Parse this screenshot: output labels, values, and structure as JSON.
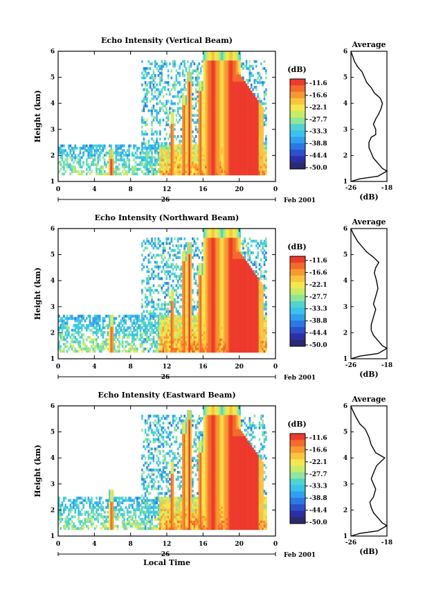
{
  "colorbar": {
    "unit": "(dB)",
    "labels": [
      "-11.6",
      "-16.6",
      "-22.1",
      "-27.7",
      "-33.3",
      "-38.8",
      "-44.4",
      "-50.0"
    ],
    "colors": [
      "#ee3a2c",
      "#f46a2a",
      "#f8992f",
      "#fbc43c",
      "#f4e74e",
      "#c9ec66",
      "#8fe59a",
      "#4fd4cf",
      "#38c3ee",
      "#2f9ff0",
      "#2b77e6",
      "#2b50cc",
      "#2b2fa6",
      "#2a2a6e"
    ]
  },
  "chart_data": [
    {
      "type": "heatmap",
      "title": "Echo Intensity (Vertical Beam)",
      "xlabel": "",
      "ylabel": "Height (km)",
      "xticks": [
        "0",
        "4",
        "8",
        "12",
        "16",
        "20",
        "0"
      ],
      "xlim": [
        0,
        24
      ],
      "ylim": [
        1,
        6
      ],
      "yticks": [
        "1",
        "2",
        "3",
        "4",
        "5",
        "6"
      ],
      "date_label": "26",
      "month_label": "Feb 2001",
      "zlabel": "(dB)",
      "zlim": [
        -50.0,
        -11.6
      ],
      "average_profile": {
        "title": "Average",
        "xlabel": "(dB)",
        "xticks": [
          "-26",
          "-18"
        ],
        "xlim": [
          -26,
          -18
        ],
        "ylim": [
          1,
          6
        ],
        "points": [
          [
            -26,
            1.0
          ],
          [
            -24,
            1.1
          ],
          [
            -20,
            1.2
          ],
          [
            -18,
            1.4
          ],
          [
            -19,
            1.5
          ],
          [
            -20,
            1.7
          ],
          [
            -21,
            1.9
          ],
          [
            -21.5,
            2.1
          ],
          [
            -22,
            2.3
          ],
          [
            -22,
            2.5
          ],
          [
            -21.5,
            2.7
          ],
          [
            -20.5,
            2.8
          ],
          [
            -20.5,
            3.0
          ],
          [
            -21,
            3.2
          ],
          [
            -20.5,
            3.4
          ],
          [
            -19.8,
            3.6
          ],
          [
            -19.3,
            3.8
          ],
          [
            -19,
            4.0
          ],
          [
            -19.5,
            4.2
          ],
          [
            -20.8,
            4.4
          ],
          [
            -21.5,
            4.6
          ],
          [
            -22.5,
            4.8
          ],
          [
            -23,
            5.0
          ],
          [
            -23.5,
            5.2
          ],
          [
            -24.5,
            5.4
          ],
          [
            -25.2,
            5.6
          ],
          [
            -25.6,
            5.8
          ],
          [
            -26,
            6.0
          ]
        ]
      },
      "events": [
        {
          "hour": 5.8,
          "top": 2.2,
          "core": -12
        },
        {
          "hour": 12.5,
          "top": 3.6,
          "core": -13
        },
        {
          "hour": 13.8,
          "top": 4.3,
          "core": -12
        },
        {
          "hour": 14.4,
          "top": 5.2,
          "core": -12
        },
        {
          "hour": 15.6,
          "top": 4.8,
          "core": -12
        },
        {
          "hour": 17.0,
          "top": 6.0,
          "core": -11.6
        },
        {
          "hour": 19.0,
          "top": 6.0,
          "core": -11.6
        }
      ],
      "low_layer": [
        1.2,
        2.4
      ],
      "sparse_hours": [
        0,
        10
      ]
    },
    {
      "type": "heatmap",
      "title": "Echo Intensity (Northward Beam)",
      "xlabel": "",
      "ylabel": "Height (km)",
      "xticks": [
        "0",
        "4",
        "8",
        "12",
        "16",
        "20",
        "0"
      ],
      "xlim": [
        0,
        24
      ],
      "ylim": [
        1,
        6
      ],
      "yticks": [
        "1",
        "2",
        "3",
        "4",
        "5",
        "6"
      ],
      "date_label": "26",
      "month_label": "Feb 2001",
      "zlabel": "(dB)",
      "zlim": [
        -50.0,
        -11.6
      ],
      "average_profile": {
        "title": "Average",
        "xlabel": "(dB)",
        "xticks": [
          "-26",
          "-18"
        ],
        "xlim": [
          -26,
          -18
        ],
        "ylim": [
          1,
          6
        ],
        "points": [
          [
            -26,
            1.0
          ],
          [
            -24,
            1.1
          ],
          [
            -20,
            1.2
          ],
          [
            -18,
            1.4
          ],
          [
            -19,
            1.5
          ],
          [
            -20,
            1.7
          ],
          [
            -21,
            1.9
          ],
          [
            -21.5,
            2.1
          ],
          [
            -21.5,
            2.3
          ],
          [
            -21,
            2.6
          ],
          [
            -20.5,
            2.9
          ],
          [
            -21,
            3.1
          ],
          [
            -20.5,
            3.4
          ],
          [
            -20,
            3.7
          ],
          [
            -20.3,
            4.0
          ],
          [
            -20.8,
            4.3
          ],
          [
            -20.5,
            4.5
          ],
          [
            -19.8,
            4.7
          ],
          [
            -21,
            4.9
          ],
          [
            -22.5,
            5.1
          ],
          [
            -23.5,
            5.3
          ],
          [
            -24.5,
            5.5
          ],
          [
            -25.5,
            5.8
          ],
          [
            -26,
            6.0
          ]
        ]
      },
      "events": [
        {
          "hour": 5.8,
          "top": 2.6,
          "core": -13
        },
        {
          "hour": 12.5,
          "top": 3.6,
          "core": -13
        },
        {
          "hour": 13.8,
          "top": 5.1,
          "core": -12
        },
        {
          "hour": 14.4,
          "top": 5.4,
          "core": -12
        },
        {
          "hour": 15.6,
          "top": 4.6,
          "core": -12
        },
        {
          "hour": 17.0,
          "top": 6.0,
          "core": -11.6
        },
        {
          "hour": 19.0,
          "top": 6.0,
          "core": -11.6
        }
      ],
      "low_layer": [
        1.2,
        2.6
      ],
      "sparse_hours": [
        0,
        10
      ]
    },
    {
      "type": "heatmap",
      "title": "Echo Intensity (Eastward Beam)",
      "xlabel": "Local Time",
      "ylabel": "Height (km)",
      "xticks": [
        "0",
        "4",
        "8",
        "12",
        "16",
        "20",
        "0"
      ],
      "xlim": [
        0,
        24
      ],
      "ylim": [
        1,
        6
      ],
      "yticks": [
        "1",
        "2",
        "3",
        "4",
        "5",
        "6"
      ],
      "date_label": "26",
      "month_label": "Feb 2001",
      "zlabel": "(dB)",
      "zlim": [
        -50.0,
        -11.6
      ],
      "average_profile": {
        "title": "Average",
        "xlabel": "(dB)",
        "xticks": [
          "-26",
          "-18"
        ],
        "xlim": [
          -26,
          -18
        ],
        "ylim": [
          1,
          6
        ],
        "points": [
          [
            -26,
            1.0
          ],
          [
            -24,
            1.1
          ],
          [
            -20,
            1.2
          ],
          [
            -18,
            1.4
          ],
          [
            -19,
            1.5
          ],
          [
            -20,
            1.7
          ],
          [
            -21,
            1.9
          ],
          [
            -21.5,
            2.1
          ],
          [
            -21.8,
            2.3
          ],
          [
            -21,
            2.5
          ],
          [
            -20.5,
            2.8
          ],
          [
            -21,
            3.0
          ],
          [
            -21.5,
            3.2
          ],
          [
            -20.8,
            3.5
          ],
          [
            -20.3,
            3.7
          ],
          [
            -18.5,
            4.0
          ],
          [
            -20.5,
            4.2
          ],
          [
            -21.5,
            4.5
          ],
          [
            -22,
            4.8
          ],
          [
            -22.8,
            5.1
          ],
          [
            -24,
            5.3
          ],
          [
            -25,
            5.6
          ],
          [
            -25.8,
            5.9
          ],
          [
            -26,
            6.0
          ]
        ]
      },
      "events": [
        {
          "hour": 5.8,
          "top": 2.7,
          "core": -13
        },
        {
          "hour": 12.5,
          "top": 3.8,
          "core": -13
        },
        {
          "hour": 13.8,
          "top": 5.3,
          "core": -12
        },
        {
          "hour": 14.4,
          "top": 5.8,
          "core": -12
        },
        {
          "hour": 15.6,
          "top": 4.6,
          "core": -12
        },
        {
          "hour": 17.0,
          "top": 6.0,
          "core": -11.6
        },
        {
          "hour": 19.0,
          "top": 6.0,
          "core": -11.6
        }
      ],
      "low_layer": [
        1.2,
        2.5
      ],
      "sparse_hours": [
        0,
        10
      ]
    }
  ]
}
